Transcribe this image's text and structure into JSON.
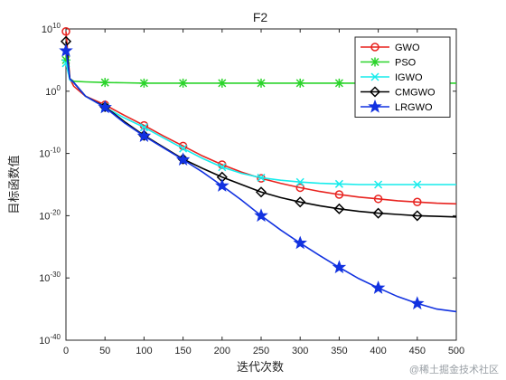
{
  "chart_data": {
    "type": "line",
    "title": "F2",
    "xlabel": "迭代次数",
    "ylabel": "目标函数值",
    "xlim": [
      0,
      500
    ],
    "y_scale": "log",
    "ylim_exp": [
      -40,
      10
    ],
    "x_ticks": [
      "0",
      "50",
      "100",
      "150",
      "200",
      "250",
      "300",
      "350",
      "400",
      "450",
      "500"
    ],
    "y_ticks": [
      {
        "exp": 10,
        "base": "10",
        "sup": "10"
      },
      {
        "exp": 0,
        "base": "10",
        "sup": "0"
      },
      {
        "exp": -10,
        "base": "10",
        "sup": "-10"
      },
      {
        "exp": -20,
        "base": "10",
        "sup": "-20"
      },
      {
        "exp": -30,
        "base": "10",
        "sup": "-30"
      },
      {
        "exp": -40,
        "base": "10",
        "sup": "-40"
      }
    ],
    "legend_position": "top-right",
    "grid": false,
    "series": [
      {
        "name": "GWO",
        "color": "#e8231f",
        "marker": "circle",
        "x": [
          0,
          5,
          10,
          25,
          50,
          75,
          100,
          125,
          150,
          175,
          200,
          225,
          250,
          275,
          300,
          325,
          350,
          375,
          400,
          425,
          450,
          475,
          500
        ],
        "log10_y": [
          9.6,
          2,
          0.8,
          -0.8,
          -2.2,
          -3.9,
          -5.5,
          -7.2,
          -8.8,
          -10.4,
          -11.8,
          -13.0,
          -14.0,
          -14.8,
          -15.5,
          -16.1,
          -16.6,
          -17.0,
          -17.3,
          -17.6,
          -17.8,
          -18.0,
          -18.1
        ]
      },
      {
        "name": "PSO",
        "color": "#2bd42b",
        "marker": "star",
        "x": [
          0,
          5,
          10,
          25,
          50,
          75,
          100,
          150,
          200,
          250,
          300,
          350,
          400,
          450,
          500
        ],
        "log10_y": [
          5,
          2.0,
          1.6,
          1.5,
          1.4,
          1.35,
          1.3,
          1.3,
          1.3,
          1.3,
          1.3,
          1.3,
          1.3,
          1.3,
          1.3
        ]
      },
      {
        "name": "IGWO",
        "color": "#17ecec",
        "marker": "x",
        "x": [
          0,
          5,
          10,
          25,
          50,
          75,
          100,
          125,
          150,
          175,
          200,
          225,
          250,
          275,
          300,
          325,
          350,
          375,
          400,
          425,
          450,
          475,
          500
        ],
        "log10_y": [
          4.5,
          1.8,
          1.4,
          -0.8,
          -2.6,
          -4.3,
          -5.8,
          -7.5,
          -9.2,
          -10.8,
          -12.2,
          -13.2,
          -13.9,
          -14.3,
          -14.6,
          -14.8,
          -14.9,
          -15.0,
          -15.0,
          -15.0,
          -15.0,
          -15.0,
          -15.0
        ]
      },
      {
        "name": "CMGWO",
        "color": "#000000",
        "marker": "diamond",
        "x": [
          0,
          5,
          10,
          25,
          50,
          75,
          100,
          125,
          150,
          175,
          200,
          225,
          250,
          275,
          300,
          325,
          350,
          375,
          400,
          425,
          450,
          475,
          500
        ],
        "log10_y": [
          8,
          2.0,
          1.4,
          -0.8,
          -2.5,
          -4.9,
          -7.1,
          -9.0,
          -10.9,
          -12.4,
          -13.8,
          -15.0,
          -16.2,
          -17.1,
          -17.8,
          -18.4,
          -18.9,
          -19.3,
          -19.6,
          -19.8,
          -20.0,
          -20.1,
          -20.2
        ]
      },
      {
        "name": "LRGWO",
        "color": "#1232e0",
        "marker": "pentagram",
        "x": [
          0,
          5,
          10,
          25,
          50,
          75,
          100,
          125,
          150,
          175,
          200,
          225,
          250,
          275,
          300,
          325,
          350,
          375,
          400,
          425,
          450,
          475,
          500
        ],
        "log10_y": [
          6.5,
          2.0,
          1.4,
          -0.8,
          -2.6,
          -5.1,
          -7.2,
          -9.1,
          -11.0,
          -13.0,
          -15.2,
          -17.5,
          -20.0,
          -22.3,
          -24.4,
          -26.4,
          -28.3,
          -30.1,
          -31.6,
          -33.0,
          -34.1,
          -35.0,
          -35.4
        ]
      }
    ]
  },
  "watermark": "@稀土掘金技术社区"
}
